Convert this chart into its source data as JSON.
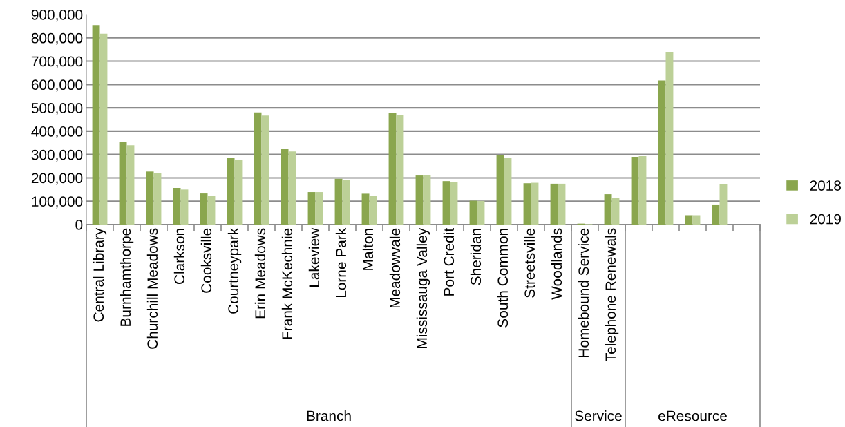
{
  "chart_data": {
    "type": "bar",
    "categories": [
      "Central Library",
      "Burnhamthorpe",
      "Churchill Meadows",
      "Clarkson",
      "Cooksville",
      "Courtneypark",
      "Erin Meadows",
      "Frank McKechnie",
      "Lakeview",
      "Lorne Park",
      "Malton",
      "Meadowvale",
      "Mississauga Valley",
      "Port Credit",
      "Sheridan",
      "South Common",
      "Streetsville",
      "Woodlands",
      "Homebound Service",
      "Telephone Renewals",
      null,
      null,
      null,
      null,
      null
    ],
    "series": [
      {
        "name": "2018",
        "color": "#8aa64e",
        "values": [
          855000,
          352000,
          227000,
          157000,
          133000,
          284000,
          480000,
          325000,
          139000,
          196000,
          132000,
          478000,
          210000,
          186000,
          102000,
          297000,
          177000,
          175000,
          4000,
          130000,
          290000,
          617000,
          40000,
          86000,
          null
        ]
      },
      {
        "name": "2019",
        "color": "#bcd097",
        "values": [
          818000,
          340000,
          219000,
          150000,
          122000,
          276000,
          467000,
          313000,
          139000,
          190000,
          124000,
          471000,
          212000,
          181000,
          101000,
          284000,
          179000,
          175000,
          2000,
          114000,
          293000,
          740000,
          40000,
          172000,
          null
        ]
      }
    ],
    "ylim": [
      0,
      900000
    ],
    "yticks": [
      {
        "value": 0,
        "label": "0"
      },
      {
        "value": 100000,
        "label": "100,000"
      },
      {
        "value": 200000,
        "label": "200,000"
      },
      {
        "value": 300000,
        "label": "300,000"
      },
      {
        "value": 400000,
        "label": "400,000"
      },
      {
        "value": 500000,
        "label": "500,000"
      },
      {
        "value": 600000,
        "label": "600,000"
      },
      {
        "value": 700000,
        "label": "700,000"
      },
      {
        "value": 800000,
        "label": "800,000"
      },
      {
        "value": 900000,
        "label": "900,000"
      }
    ],
    "grid": "y",
    "legend": "right",
    "annotations": [
      "Branch",
      "Service",
      "eResource"
    ]
  }
}
